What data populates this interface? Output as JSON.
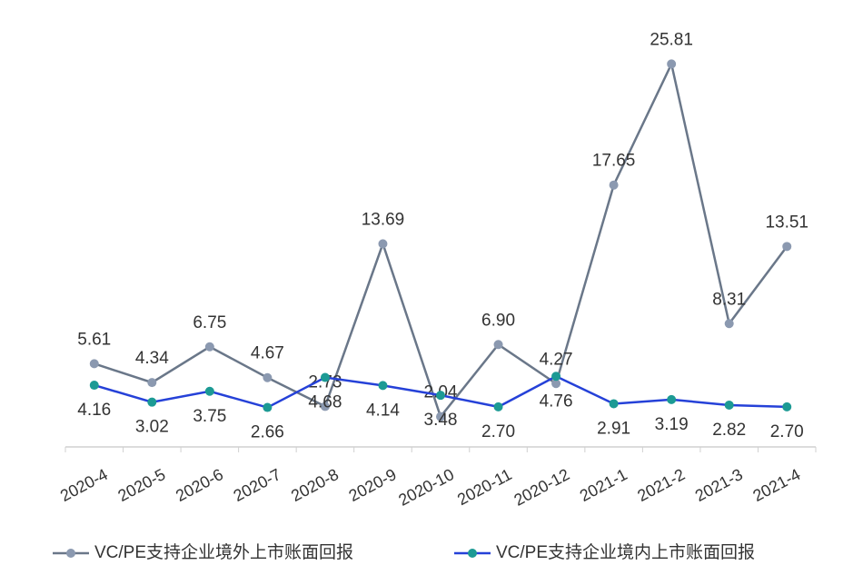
{
  "chart_data": {
    "type": "line",
    "categories": [
      "2020-4",
      "2020-5",
      "2020-6",
      "2020-7",
      "2020-8",
      "2020-9",
      "2020-10",
      "2020-11",
      "2020-12",
      "2021-1",
      "2021-2",
      "2021-3",
      "2021-4"
    ],
    "ylim": [
      0,
      30
    ],
    "series": [
      {
        "name": "VC/PE支持企业境外上市账面回报",
        "color": "#6a7789",
        "marker_color": "#8b99b0",
        "values": [
          5.61,
          4.34,
          6.75,
          4.67,
          2.73,
          13.69,
          2.04,
          6.9,
          4.27,
          17.65,
          25.81,
          8.31,
          13.51
        ],
        "value_labels": [
          "5.61",
          "4.34",
          "6.75",
          "4.67",
          "2.73",
          "13.69",
          "2.04",
          "6.90",
          "4.27",
          "17.65",
          "25.81",
          "8.31",
          "13.51"
        ]
      },
      {
        "name": "VC/PE支持企业境内上市账面回报",
        "color": "#2541d8",
        "marker_color": "#1c9a94",
        "values": [
          4.16,
          3.02,
          3.75,
          2.66,
          4.68,
          4.14,
          3.48,
          2.7,
          4.76,
          2.91,
          3.19,
          2.82,
          2.7
        ],
        "value_labels": [
          "4.16",
          "3.02",
          "3.75",
          "2.66",
          "4.68",
          "4.14",
          "3.48",
          "2.70",
          "4.76",
          "2.91",
          "3.19",
          "2.82",
          "2.70"
        ]
      }
    ]
  }
}
